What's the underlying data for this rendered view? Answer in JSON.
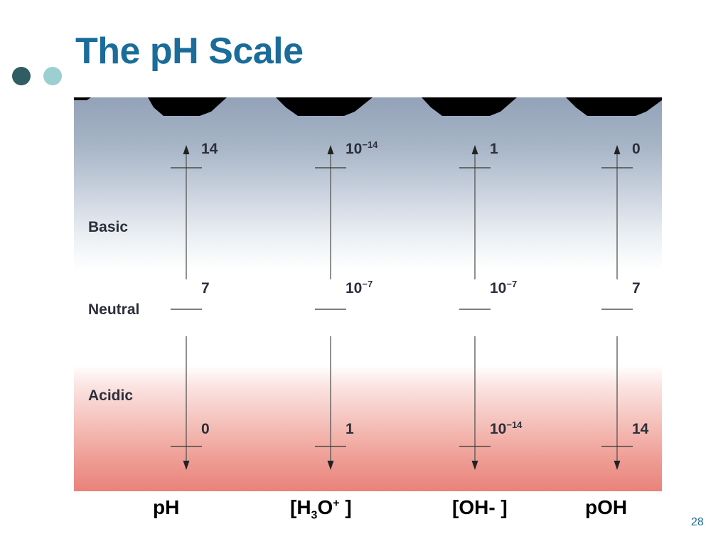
{
  "slide": {
    "title": "The pH Scale",
    "page_number": "28",
    "regions": {
      "basic": "Basic",
      "neutral": "Neutral",
      "acidic": "Acidic"
    },
    "columns": [
      {
        "id": "ph",
        "axis_label": {
          "base": "pH",
          "sub": "",
          "tail": "",
          "sup": "",
          "end": ""
        },
        "ticks": [
          {
            "base": "14",
            "exp": ""
          },
          {
            "base": "7",
            "exp": ""
          },
          {
            "base": "0",
            "exp": ""
          }
        ]
      },
      {
        "id": "h3o",
        "axis_label": {
          "base": "[H",
          "sub": "3",
          "tail": "O",
          "sup": "+",
          "end": " ]"
        },
        "ticks": [
          {
            "base": "10",
            "exp": "−14"
          },
          {
            "base": "10",
            "exp": "−7"
          },
          {
            "base": "1",
            "exp": ""
          }
        ]
      },
      {
        "id": "oh",
        "axis_label": {
          "base": "[OH- ]",
          "sub": "",
          "tail": "",
          "sup": "",
          "end": ""
        },
        "ticks": [
          {
            "base": "1",
            "exp": ""
          },
          {
            "base": "10",
            "exp": "−7"
          },
          {
            "base": "10",
            "exp": "−14"
          }
        ]
      },
      {
        "id": "poh",
        "axis_label": {
          "base": "pOH",
          "sub": "",
          "tail": "",
          "sup": "",
          "end": ""
        },
        "ticks": [
          {
            "base": "0",
            "exp": ""
          },
          {
            "base": "7",
            "exp": ""
          },
          {
            "base": "14",
            "exp": ""
          }
        ]
      }
    ],
    "colors": {
      "title": "#1a6c9a",
      "basic_region": "#93a2b8",
      "acidic_region": "#e9827a",
      "dot_dark": "#2f5d63",
      "dot_light": "#9ccfd1"
    }
  }
}
